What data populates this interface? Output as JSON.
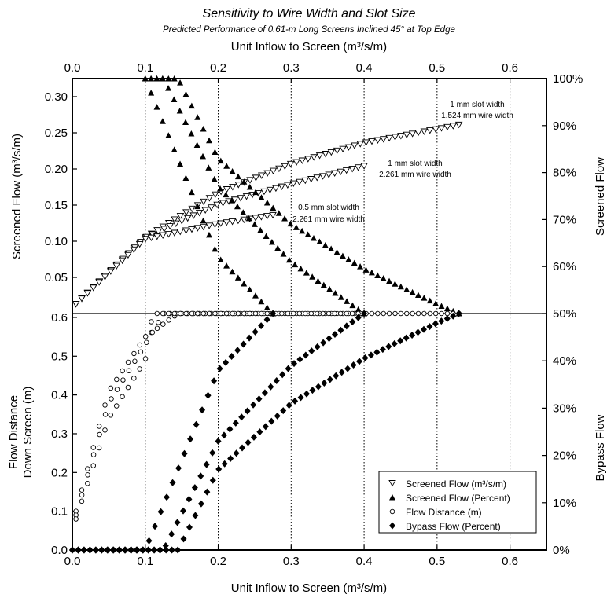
{
  "title": "Sensitivity to Wire Width and Slot Size",
  "subtitle": "Predicted Performance of 0.61-m Long Screens Inclined 45° at Top Edge",
  "top_axis_label": "Unit Inflow to Screen (m³/s/m)",
  "bottom_axis_label": "Unit Inflow to Screen (m³/s/m)",
  "left_upper_label": "Screened Flow (m³/s/m)",
  "left_lower_label_line1": "Flow Distance",
  "left_lower_label_line2": "Down Screen (m)",
  "right_upper_label": "Screened Flow",
  "right_lower_label": "Bypass Flow",
  "annotations": [
    {
      "line1": "1 mm slot width",
      "line2": "1.524 mm wire width"
    },
    {
      "line1": "1 mm slot width",
      "line2": "2.261 mm wire width"
    },
    {
      "line1": "0.5 mm slot width",
      "line2": "2.261 mm wire width"
    }
  ],
  "legend": [
    {
      "marker": "tri-down-open",
      "label": "Screened Flow (m³/s/m)"
    },
    {
      "marker": "tri-up-filled",
      "label": "Screened Flow (Percent)"
    },
    {
      "marker": "circle-open",
      "label": "Flow Distance (m)"
    },
    {
      "marker": "diamond-filled",
      "label": "Bypass Flow (Percent)"
    }
  ],
  "chart_data": {
    "type": "scatter",
    "x_ticks": [
      "0.0",
      "0.1",
      "0.2",
      "0.3",
      "0.4",
      "0.5",
      "0.6"
    ],
    "xlim": [
      0,
      0.65
    ],
    "upper_panel": {
      "ylim_left": [
        0,
        0.325
      ],
      "ylim_right_percent": [
        50,
        100
      ],
      "left_ticks": [
        "0.05",
        "0.10",
        "0.15",
        "0.20",
        "0.25",
        "0.30"
      ],
      "right_ticks": [
        "50%",
        "60%",
        "70%",
        "80%",
        "90%",
        "100%"
      ]
    },
    "lower_panel": {
      "ylim_left": [
        0,
        0.61
      ],
      "ylim_right_percent": [
        0,
        50
      ],
      "left_ticks": [
        "0.0",
        "0.1",
        "0.2",
        "0.3",
        "0.4",
        "0.5",
        "0.6"
      ],
      "right_ticks": [
        "0%",
        "10%",
        "20%",
        "30%",
        "40%"
      ]
    },
    "series": [
      {
        "name": "Screened Flow (m³/s/m)",
        "config": "1 mm slot width, 1.524 mm wire width",
        "points": [
          [
            0.005,
            0.013
          ],
          [
            0.1,
            0.105
          ],
          [
            0.2,
            0.167
          ],
          [
            0.3,
            0.207
          ],
          [
            0.4,
            0.236
          ],
          [
            0.5,
            0.255
          ],
          [
            0.53,
            0.261
          ]
        ]
      },
      {
        "name": "Screened Flow (m³/s/m)",
        "config": "1 mm slot width, 2.261 mm wire width",
        "points": [
          [
            0.005,
            0.013
          ],
          [
            0.1,
            0.105
          ],
          [
            0.2,
            0.151
          ],
          [
            0.3,
            0.179
          ],
          [
            0.4,
            0.204
          ]
        ]
      },
      {
        "name": "Screened Flow (m³/s/m)",
        "config": "0.5 mm slot width, 2.261 mm wire width",
        "points": [
          [
            0.005,
            0.013
          ],
          [
            0.1,
            0.103
          ],
          [
            0.2,
            0.124
          ],
          [
            0.275,
            0.136
          ]
        ]
      },
      {
        "name": "Screened Flow (Percent)",
        "config": "1 mm slot width, 1.524 mm wire width",
        "points": [
          [
            0.1,
            100
          ],
          [
            0.145,
            100
          ],
          [
            0.2,
            83
          ],
          [
            0.3,
            69
          ],
          [
            0.4,
            59.5
          ],
          [
            0.5,
            52
          ],
          [
            0.53,
            50
          ]
        ]
      },
      {
        "name": "Screened Flow (Percent)",
        "config": "1 mm slot width, 2.261 mm wire width",
        "points": [
          [
            0.1,
            100
          ],
          [
            0.125,
            100
          ],
          [
            0.2,
            77
          ],
          [
            0.3,
            61
          ],
          [
            0.4,
            50
          ]
        ]
      },
      {
        "name": "Screened Flow (Percent)",
        "config": "0.5 mm slot width, 2.261 mm wire width",
        "points": [
          [
            0.1,
            100
          ],
          [
            0.2,
            62
          ],
          [
            0.275,
            50
          ]
        ]
      },
      {
        "name": "Flow Distance (m)",
        "config": "1 mm slot width, 1.524 mm wire width",
        "points": [
          [
            0.005,
            0.1
          ],
          [
            0.05,
            0.41
          ],
          [
            0.1,
            0.55
          ],
          [
            0.145,
            0.61
          ],
          [
            0.53,
            0.61
          ]
        ]
      },
      {
        "name": "Flow Distance (m)",
        "config": "1 mm slot width, 2.261 mm wire width",
        "points": [
          [
            0.005,
            0.09
          ],
          [
            0.05,
            0.38
          ],
          [
            0.1,
            0.53
          ],
          [
            0.125,
            0.61
          ],
          [
            0.4,
            0.61
          ]
        ]
      },
      {
        "name": "Flow Distance (m)",
        "config": "0.5 mm slot width, 2.261 mm wire width",
        "points": [
          [
            0.005,
            0.08
          ],
          [
            0.05,
            0.34
          ],
          [
            0.1,
            0.49
          ],
          [
            0.11,
            0.61
          ],
          [
            0.275,
            0.61
          ]
        ]
      },
      {
        "name": "Bypass Flow (Percent)",
        "config": "1 mm slot width, 1.524 mm wire width",
        "points": [
          [
            0,
            0
          ],
          [
            0.145,
            0
          ],
          [
            0.2,
            17
          ],
          [
            0.3,
            31
          ],
          [
            0.4,
            40.5
          ],
          [
            0.5,
            48
          ],
          [
            0.53,
            50
          ]
        ]
      },
      {
        "name": "Bypass Flow (Percent)",
        "config": "1 mm slot width, 2.261 mm wire width",
        "points": [
          [
            0,
            0
          ],
          [
            0.125,
            0
          ],
          [
            0.2,
            23
          ],
          [
            0.3,
            39
          ],
          [
            0.4,
            50
          ]
        ]
      },
      {
        "name": "Bypass Flow (Percent)",
        "config": "0.5 mm slot width, 2.261 mm wire width",
        "points": [
          [
            0,
            0
          ],
          [
            0.1,
            0
          ],
          [
            0.2,
            38
          ],
          [
            0.275,
            50
          ]
        ]
      }
    ]
  }
}
